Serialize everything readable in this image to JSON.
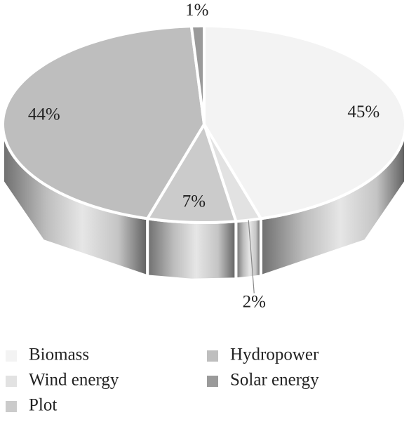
{
  "chart_data": {
    "type": "pie",
    "categories": [
      "Biomass",
      "Wind energy",
      "Plot",
      "Hydropower",
      "Solar energy"
    ],
    "values": [
      45,
      2,
      7,
      44,
      1
    ],
    "value_labels": [
      "45%",
      "2%",
      "7%",
      "44%",
      "1%"
    ],
    "colors": [
      "#f3f3f3",
      "#e2e2e2",
      "#cbcbcb",
      "#bebebe",
      "#9a9a9a"
    ]
  }
}
